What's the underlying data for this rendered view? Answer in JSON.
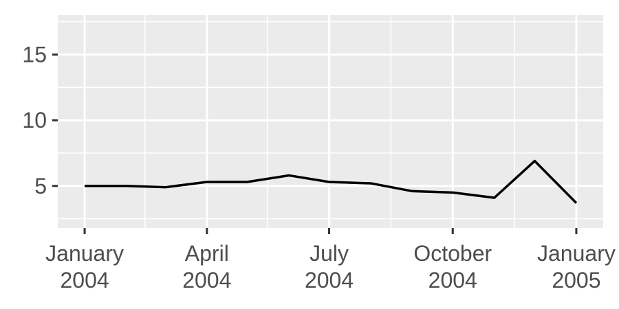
{
  "chart_data": {
    "type": "line",
    "title": "",
    "xlabel": "",
    "ylabel": "",
    "x": [
      "2004-01-01",
      "2004-02-01",
      "2004-03-01",
      "2004-04-01",
      "2004-05-01",
      "2004-06-01",
      "2004-07-01",
      "2004-08-01",
      "2004-09-01",
      "2004-10-01",
      "2004-11-01",
      "2004-12-01",
      "2005-01-01"
    ],
    "series": [
      {
        "values": [
          5.0,
          5.0,
          4.9,
          5.3,
          5.3,
          5.8,
          5.3,
          5.2,
          4.6,
          4.5,
          4.1,
          6.9,
          3.7
        ],
        "color": "#000000"
      }
    ],
    "xlim": [
      "2003-12-12",
      "2005-01-21"
    ],
    "ylim": [
      1.8,
      18.0
    ],
    "x_ticks": [
      {
        "value": "2004-01-01",
        "line1": "January",
        "line2": "2004"
      },
      {
        "value": "2004-04-01",
        "line1": "April",
        "line2": "2004"
      },
      {
        "value": "2004-07-01",
        "line1": "July",
        "line2": "2004"
      },
      {
        "value": "2004-10-01",
        "line1": "October",
        "line2": "2004"
      },
      {
        "value": "2005-01-01",
        "line1": "January",
        "line2": "2005"
      }
    ],
    "x_minor": [
      "2004-02-15",
      "2004-05-16",
      "2004-08-16",
      "2004-11-16"
    ],
    "y_ticks": [
      {
        "value": 5,
        "label": "5"
      },
      {
        "value": 10,
        "label": "10"
      },
      {
        "value": 15,
        "label": "15"
      }
    ],
    "y_minor": [
      2.5,
      7.5,
      12.5,
      17.5
    ],
    "grid": true,
    "legend": "none",
    "colors": {
      "panel": "#ebebeb",
      "grid": "#ffffff",
      "axis_text": "#4d4d4d",
      "tick": "#333333",
      "line": "#000000"
    }
  }
}
